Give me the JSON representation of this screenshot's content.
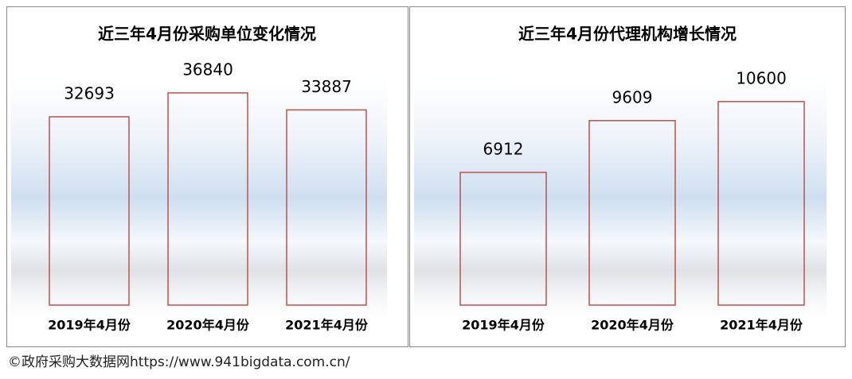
{
  "chart_data": [
    {
      "type": "bar",
      "title": "近三年4月份采购单位变化情况",
      "categories": [
        "2019年4月份",
        "2020年4月份",
        "2021年4月份"
      ],
      "values": [
        32693,
        36840,
        33887
      ],
      "color": "#c0504d",
      "ylim": [
        0,
        40000
      ]
    },
    {
      "type": "bar",
      "title": "近三年4月份代理机构增长情况",
      "categories": [
        "2019年4月份",
        "2020年4月份",
        "2021年4月份"
      ],
      "values": [
        6912,
        9609,
        10600
      ],
      "color": "#c0504d",
      "ylim": [
        0,
        12000
      ]
    }
  ],
  "footer": "©政府采购大数据网https://www.941bigdata.com.cn/"
}
